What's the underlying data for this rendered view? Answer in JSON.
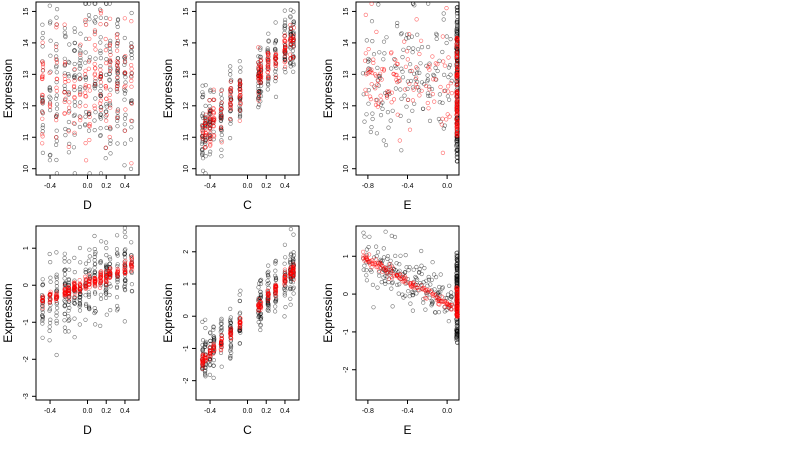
{
  "colors": {
    "black_series": "#000000",
    "red_series": "#ff0000",
    "axis": "#000000",
    "background": "#ffffff"
  },
  "chart_data": [
    {
      "type": "scatter",
      "xlabel": "D",
      "ylabel": "Expression",
      "xlim": [
        -0.55,
        0.55
      ],
      "ylim": [
        9.8,
        15.3
      ],
      "xticks": [
        -0.4,
        0.0,
        0.2,
        0.4
      ],
      "xtick_labels": [
        "-0.4",
        "0.0",
        "0.2",
        "0.4"
      ],
      "yticks": [
        10,
        11,
        12,
        13,
        14,
        15
      ],
      "ytick_labels": [
        "10",
        "11",
        "12",
        "13",
        "14",
        "15"
      ],
      "x_columns": [
        -0.48,
        -0.4,
        -0.33,
        -0.24,
        -0.2,
        -0.14,
        -0.08,
        -0.02,
        0.02,
        0.08,
        0.14,
        0.2,
        0.24,
        0.32,
        0.4,
        0.47
      ],
      "trend": {
        "intercept": 12.8,
        "slope": 0.4
      },
      "black": {
        "n": 300,
        "spread": 1.3
      },
      "red": {
        "n": 180,
        "spread": 0.95
      },
      "grid": false,
      "legend": "none"
    },
    {
      "type": "scatter",
      "xlabel": "C",
      "ylabel": "Expression",
      "xlim": [
        -0.55,
        0.55
      ],
      "ylim": [
        9.8,
        15.3
      ],
      "xticks": [
        -0.4,
        0.0,
        0.2,
        0.4
      ],
      "xtick_labels": [
        "-0.4",
        "0.0",
        "0.2",
        "0.4"
      ],
      "yticks": [
        10,
        11,
        12,
        13,
        14,
        15
      ],
      "ytick_labels": [
        "10",
        "11",
        "12",
        "13",
        "14",
        "15"
      ],
      "x_columns": [
        -0.48,
        -0.45,
        -0.4,
        -0.36,
        -0.28,
        -0.18,
        -0.08,
        0.12,
        0.14,
        0.22,
        0.3,
        0.4,
        0.46,
        0.49
      ],
      "trend": {
        "intercept": 12.6,
        "slope": 2.95
      },
      "black": {
        "n": 330,
        "spread": 0.55
      },
      "red": {
        "n": 220,
        "spread": 0.3
      },
      "grid": false,
      "legend": "none"
    },
    {
      "type": "scatter",
      "xlabel": "E",
      "ylabel": "Expression",
      "xlim": [
        -0.92,
        0.12
      ],
      "ylim": [
        9.8,
        15.3
      ],
      "xticks": [
        -0.8,
        -0.4,
        0.0
      ],
      "xtick_labels": [
        "-0.8",
        "-0.4",
        "0.0"
      ],
      "yticks": [
        10,
        11,
        12,
        13,
        14,
        15
      ],
      "ytick_labels": [
        "10",
        "11",
        "12",
        "13",
        "14",
        "15"
      ],
      "cluster_x": 0.1,
      "scatter_x_range": [
        -0.85,
        0.05
      ],
      "center": 12.8,
      "black": {
        "n": 150,
        "spread": 1.15,
        "cluster_n": 150,
        "cluster_range": [
          10.2,
          15.2
        ]
      },
      "red": {
        "n": 110,
        "spread": 0.85,
        "cluster_n": 120,
        "cluster_range": [
          11.0,
          14.2
        ]
      },
      "grid": false,
      "legend": "none"
    },
    {
      "type": "scatter",
      "xlabel": "D",
      "ylabel": "Expression",
      "xlim": [
        -0.55,
        0.55
      ],
      "ylim": [
        -3.1,
        1.6
      ],
      "xticks": [
        -0.4,
        0.0,
        0.2,
        0.4
      ],
      "xtick_labels": [
        "-0.4",
        "0.0",
        "0.2",
        "0.4"
      ],
      "yticks": [
        -3,
        -2,
        -1,
        0,
        1
      ],
      "ytick_labels": [
        "-3",
        "-2",
        "-1",
        "0",
        "1"
      ],
      "x_columns": [
        -0.48,
        -0.4,
        -0.33,
        -0.24,
        -0.2,
        -0.14,
        -0.08,
        -0.02,
        0.02,
        0.08,
        0.14,
        0.2,
        0.24,
        0.32,
        0.4,
        0.47
      ],
      "trend": {
        "intercept": 0.05,
        "slope": 1.0
      },
      "black": {
        "n": 320,
        "spread": 0.5
      },
      "red": {
        "n": 260,
        "spread": 0.09
      },
      "grid": false,
      "legend": "none"
    },
    {
      "type": "scatter",
      "xlabel": "C",
      "ylabel": "Expression",
      "xlim": [
        -0.55,
        0.55
      ],
      "ylim": [
        -2.6,
        2.8
      ],
      "xticks": [
        -0.4,
        0.0,
        0.2,
        0.4
      ],
      "xtick_labels": [
        "-0.4",
        "0.0",
        "0.2",
        "0.4"
      ],
      "yticks": [
        -2,
        -1,
        0,
        1,
        2
      ],
      "ytick_labels": [
        "-2",
        "-1",
        "0",
        "1",
        "2"
      ],
      "x_columns": [
        -0.48,
        -0.45,
        -0.4,
        -0.36,
        -0.28,
        -0.18,
        -0.08,
        0.12,
        0.14,
        0.22,
        0.3,
        0.4,
        0.46,
        0.49
      ],
      "trend": {
        "intercept": 0.0,
        "slope": 2.9
      },
      "black": {
        "n": 330,
        "spread": 0.4
      },
      "red": {
        "n": 220,
        "spread": 0.1
      },
      "grid": false,
      "legend": "none"
    },
    {
      "type": "scatter",
      "xlabel": "E",
      "ylabel": "Expression",
      "xlim": [
        -0.92,
        0.12
      ],
      "ylim": [
        -2.8,
        1.8
      ],
      "xticks": [
        -0.8,
        -0.4,
        0.0
      ],
      "xtick_labels": [
        "-0.8",
        "-0.4",
        "0.0"
      ],
      "yticks": [
        -2,
        -1,
        0,
        1
      ],
      "ytick_labels": [
        "-2",
        "-1",
        "0",
        "1"
      ],
      "cluster_x": 0.1,
      "scatter_x_range": [
        -0.85,
        0.05
      ],
      "trend": {
        "intercept": -0.25,
        "slope": -1.45
      },
      "black": {
        "n": 180,
        "spread": 0.35,
        "cluster_n": 150,
        "cluster_range": [
          -1.3,
          1.1
        ]
      },
      "red": {
        "n": 140,
        "spread": 0.07,
        "cluster_n": 80,
        "cluster_range": [
          -0.6,
          0.2
        ]
      },
      "grid": false,
      "legend": "none"
    }
  ]
}
